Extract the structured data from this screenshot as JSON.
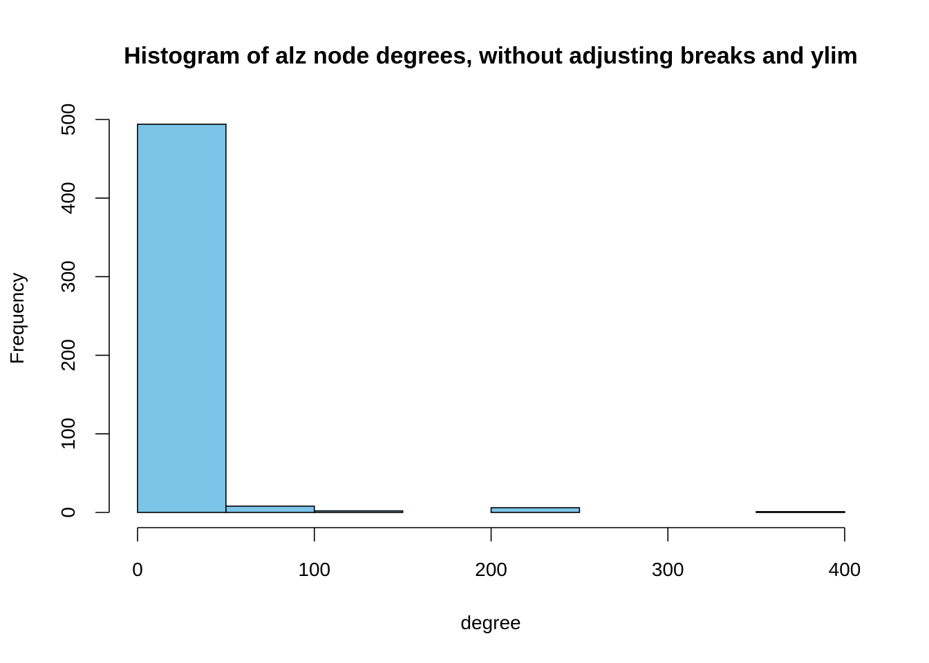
{
  "chart_data": {
    "type": "bar",
    "title": "Histogram of alz node degrees, without adjusting breaks and ylim",
    "xlabel": "degree",
    "ylabel": "Frequency",
    "bin_edges": [
      0,
      50,
      100,
      150,
      200,
      250,
      300,
      350,
      400
    ],
    "values": [
      494,
      8,
      2,
      0,
      6,
      0,
      0,
      1
    ],
    "xlim": [
      0,
      400
    ],
    "ylim": [
      0,
      500
    ],
    "x_ticks": [
      "0",
      "100",
      "200",
      "300",
      "400"
    ],
    "y_ticks": [
      "0",
      "100",
      "200",
      "300",
      "400",
      "500"
    ],
    "bar_color": "#7CC4E8",
    "grid": false,
    "legend": "none"
  }
}
